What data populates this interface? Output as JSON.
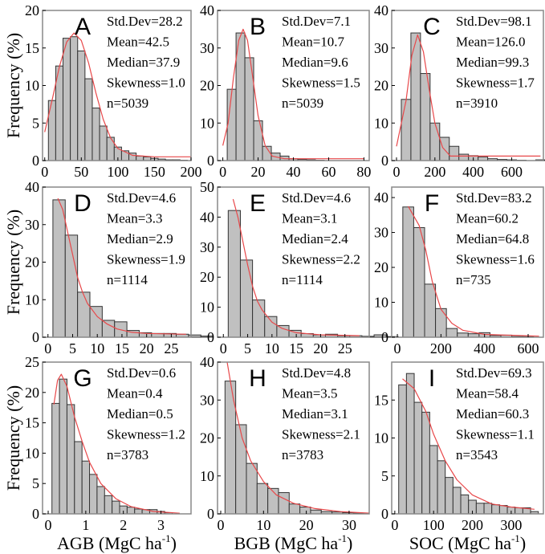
{
  "colors": {
    "bar": "#c0c0c0",
    "bar_edge": "#333333",
    "fit": "#e8484a",
    "frame": "#888888"
  },
  "ylabel": "Frequency (%)",
  "xlabels": [
    "AGB (MgC ha",
    "BGB (MgC ha",
    "SOC (MgC ha"
  ],
  "xlabel_sup": "-1",
  "xlabel_close": ")",
  "chart_data": [
    {
      "type": "bar",
      "panel": "A",
      "stats": [
        "Std.Dev=28.2",
        "Mean=42.5",
        "Median=37.9",
        "Skewness=1.0",
        "n=5039"
      ],
      "xlim": [
        -3,
        200
      ],
      "ylim": [
        0,
        20
      ],
      "xticks": [
        0,
        50,
        100,
        150,
        200
      ],
      "yticks": [
        0,
        5,
        10,
        15,
        20
      ],
      "bin_start": 5,
      "bin_width": 10,
      "values": [
        8,
        12.6,
        16.3,
        16.5,
        14.6,
        10.9,
        7,
        4.6,
        3.1,
        1.8,
        1.3,
        1.0,
        0.6,
        0.5,
        0.3,
        0.2,
        0.1,
        0.1,
        0.05
      ],
      "fit": [
        [
          0,
          3.8
        ],
        [
          10,
          8
        ],
        [
          20,
          12.5
        ],
        [
          30,
          15.8
        ],
        [
          40,
          17
        ],
        [
          50,
          16
        ],
        [
          60,
          13
        ],
        [
          70,
          9
        ],
        [
          80,
          5.5
        ],
        [
          90,
          3
        ],
        [
          100,
          1.6
        ],
        [
          120,
          0.7
        ],
        [
          150,
          0.5
        ],
        [
          200,
          0.5
        ]
      ]
    },
    {
      "type": "bar",
      "panel": "B",
      "stats": [
        "Std.Dev=7.1",
        "Mean=10.7",
        "Median=9.6",
        "Skewness=1.5",
        "n=5039"
      ],
      "xlim": [
        -3,
        83
      ],
      "ylim": [
        0,
        40
      ],
      "xticks": [
        0,
        20,
        40,
        60,
        80
      ],
      "yticks": [
        0,
        10,
        20,
        30,
        40
      ],
      "bin_start": 2.5,
      "bin_width": 5,
      "values": [
        19,
        34,
        27.4,
        10.6,
        3.8,
        2,
        1.2,
        0.5,
        0.3,
        0.2,
        0.1
      ],
      "fit": [
        [
          0,
          4
        ],
        [
          3,
          10
        ],
        [
          6,
          22
        ],
        [
          9,
          32
        ],
        [
          11.5,
          35
        ],
        [
          14,
          32
        ],
        [
          17,
          22
        ],
        [
          20,
          12
        ],
        [
          24,
          4
        ],
        [
          28,
          1.2
        ],
        [
          35,
          0.5
        ],
        [
          80,
          0.5
        ]
      ]
    },
    {
      "type": "bar",
      "panel": "C",
      "stats": [
        "Std.Dev=98.1",
        "Mean=126.0",
        "Median=99.3",
        "Skewness=1.7",
        "n=3910"
      ],
      "xlim": [
        -25,
        765
      ],
      "ylim": [
        0,
        40
      ],
      "xticks": [
        0,
        200,
        400,
        600
      ],
      "yticks": [
        0,
        10,
        20,
        30,
        40
      ],
      "bin_start": 25,
      "bin_width": 50,
      "values": [
        16.3,
        34,
        23.2,
        10,
        6.2,
        3.8,
        1.7,
        1.3,
        1.0,
        0.5,
        0.3,
        0.2,
        0.1,
        0,
        0.2
      ],
      "fit": [
        [
          0,
          3.8
        ],
        [
          50,
          16
        ],
        [
          80,
          28
        ],
        [
          110,
          33.5
        ],
        [
          140,
          29
        ],
        [
          170,
          19
        ],
        [
          200,
          10
        ],
        [
          240,
          3.5
        ],
        [
          280,
          1.2
        ],
        [
          750,
          1.2
        ]
      ]
    },
    {
      "type": "bar",
      "panel": "D",
      "stats": [
        "Std.Dev=4.6",
        "Mean=3.3",
        "Median=2.9",
        "Skewness=1.9",
        "n=1114"
      ],
      "xlim": [
        -1.1,
        29
      ],
      "ylim": [
        0,
        40
      ],
      "xticks": [
        0,
        5,
        10,
        15,
        20,
        25
      ],
      "yticks": [
        0,
        10,
        20,
        30,
        40
      ],
      "bin_start": 1,
      "bin_width": 2.5,
      "values": [
        36.6,
        27.2,
        12,
        8.2,
        4.5,
        4.1,
        1.8,
        1.2,
        1,
        1,
        0.8,
        0.6,
        0.3
      ],
      "fit": [
        [
          2,
          37
        ],
        [
          3,
          34
        ],
        [
          4,
          28
        ],
        [
          5,
          22
        ],
        [
          6,
          16
        ],
        [
          7,
          12
        ],
        [
          8,
          9
        ],
        [
          10,
          5.5
        ],
        [
          12,
          3.5
        ],
        [
          14,
          2.2
        ],
        [
          17,
          1.3
        ],
        [
          20,
          1
        ],
        [
          28,
          0.8
        ]
      ]
    },
    {
      "type": "bar",
      "panel": "E",
      "stats": [
        "Std.Dev=4.6",
        "Mean=3.1",
        "Median=2.4",
        "Skewness=2.2",
        "n=1114"
      ],
      "xlim": [
        -1.2,
        30
      ],
      "ylim": [
        0,
        50
      ],
      "xticks": [
        0,
        5,
        10,
        15,
        20,
        25
      ],
      "yticks": [
        0,
        10,
        20,
        30,
        40,
        50
      ],
      "bin_start": 1,
      "bin_width": 2.5,
      "values": [
        42.2,
        25.7,
        12.4,
        6.9,
        3.9,
        2.3,
        1.2,
        0.8,
        1.0,
        0.5,
        0.5,
        0.3,
        0.8,
        0.2
      ],
      "fit": [
        [
          2,
          46
        ],
        [
          3,
          40
        ],
        [
          4,
          32
        ],
        [
          5,
          24
        ],
        [
          6,
          17
        ],
        [
          7,
          12
        ],
        [
          8,
          9
        ],
        [
          10,
          5
        ],
        [
          12,
          3
        ],
        [
          15,
          1.5
        ],
        [
          20,
          0.8
        ],
        [
          28,
          0.5
        ]
      ]
    },
    {
      "type": "bar",
      "panel": "F",
      "stats": [
        "Std.Dev=83.2",
        "Mean=60.2",
        "Median=64.8",
        "Skewness=1.6",
        "n=735"
      ],
      "xlim": [
        -26,
        670
      ],
      "ylim": [
        0,
        43
      ],
      "xticks": [
        0,
        200,
        400,
        600
      ],
      "yticks": [
        0,
        10,
        20,
        30,
        40
      ],
      "bin_start": 25,
      "bin_width": 50,
      "values": [
        37.3,
        31.4,
        15.2,
        8.2,
        2.5,
        1.2,
        1.0,
        1.3,
        0.5,
        0.6,
        0.2,
        0.2
      ],
      "fit": [
        [
          50,
          37.5
        ],
        [
          100,
          32
        ],
        [
          130,
          25
        ],
        [
          160,
          16
        ],
        [
          200,
          8
        ],
        [
          250,
          4
        ],
        [
          300,
          2
        ],
        [
          400,
          0.8
        ],
        [
          650,
          0.3
        ]
      ]
    },
    {
      "type": "bar",
      "panel": "G",
      "stats": [
        "Std.Dev=0.6",
        "Mean=0.4",
        "Median=0.5",
        "Skewness=1.2",
        "n=3783"
      ],
      "xlim": [
        -0.15,
        3.8
      ],
      "ylim": [
        0,
        25
      ],
      "xticks": [
        0,
        1,
        2,
        3
      ],
      "yticks": [
        0,
        5,
        10,
        15,
        20,
        25
      ],
      "bin_start": 0.1,
      "bin_width": 0.2,
      "values": [
        18.2,
        22.2,
        18,
        11.9,
        8.7,
        6.5,
        4.5,
        3.0,
        2.1,
        1.3,
        1.1,
        0.8,
        0.7,
        0.7,
        0.4,
        0.2
      ],
      "fit": [
        [
          0.15,
          18
        ],
        [
          0.25,
          22
        ],
        [
          0.35,
          23
        ],
        [
          0.5,
          21
        ],
        [
          0.7,
          16
        ],
        [
          0.9,
          12
        ],
        [
          1.1,
          8.5
        ],
        [
          1.4,
          5
        ],
        [
          1.8,
          2.5
        ],
        [
          2.2,
          1.2
        ],
        [
          2.8,
          0.4
        ],
        [
          3.5,
          0.1
        ]
      ]
    },
    {
      "type": "bar",
      "panel": "H",
      "stats": [
        "Std.Dev=4.8",
        "Mean=3.5",
        "Median=3.1",
        "Skewness=2.1",
        "n=3783"
      ],
      "xlim": [
        -0.75,
        34.7
      ],
      "ylim": [
        0,
        40
      ],
      "xticks": [
        0,
        10,
        20,
        30
      ],
      "yticks": [
        0,
        10,
        20,
        30,
        40
      ],
      "bin_start": 1,
      "bin_width": 2.5,
      "values": [
        35,
        23.5,
        13.3,
        8,
        6.7,
        5.6,
        2.6,
        1.8,
        1.0,
        0.6,
        0.5,
        0.3,
        0.2
      ],
      "fit": [
        [
          1.5,
          40
        ],
        [
          3,
          30
        ],
        [
          5,
          20
        ],
        [
          7,
          14
        ],
        [
          10,
          8.5
        ],
        [
          13,
          5
        ],
        [
          17,
          2.8
        ],
        [
          22,
          1.4
        ],
        [
          28,
          0.6
        ],
        [
          34.7,
          0.2
        ]
      ]
    },
    {
      "type": "bar",
      "panel": "I",
      "stats": [
        "Std.Dev=69.3",
        "Mean=58.4",
        "Median=60.3",
        "Skewness=1.1",
        "n=3543"
      ],
      "xlim": [
        -8,
        383
      ],
      "ylim": [
        0,
        20
      ],
      "xticks": [
        0,
        100,
        200,
        300
      ],
      "yticks": [
        0,
        5,
        10,
        15
      ],
      "bin_start": 10,
      "bin_width": 20,
      "values": [
        17,
        18.5,
        14.7,
        13.4,
        9,
        7,
        4.8,
        3.5,
        2.5,
        1.8,
        1.4,
        1.4,
        1.2,
        1.1,
        0.9,
        0.8,
        0.8,
        0.3
      ],
      "fit": [
        [
          20,
          17.8
        ],
        [
          50,
          16.5
        ],
        [
          80,
          13.5
        ],
        [
          100,
          10.5
        ],
        [
          130,
          7
        ],
        [
          160,
          4.5
        ],
        [
          200,
          2.5
        ],
        [
          250,
          1.3
        ],
        [
          300,
          0.9
        ],
        [
          360,
          0.6
        ]
      ]
    }
  ]
}
